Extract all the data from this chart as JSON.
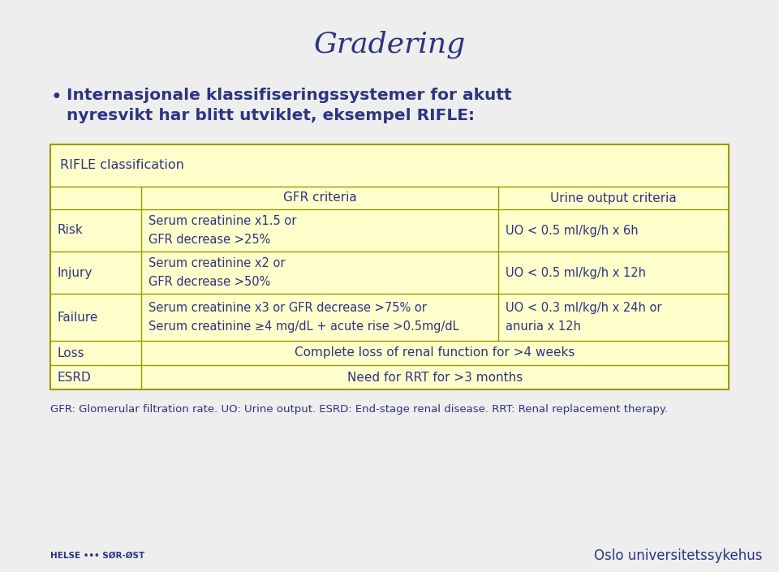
{
  "title": "Gradering",
  "bg_color": "#eeeeee",
  "text_color": "#2d3480",
  "table_bg": "#ffffcc",
  "table_border": "#999900",
  "table_header": "RIFLE classification",
  "col_header_gfr": "GFR criteria",
  "col_header_urine": "Urine output criteria",
  "rows": [
    {
      "label": "Risk",
      "gfr": "Serum creatinine x1.5 or\nGFR decrease >25%",
      "urine": "UO < 0.5 ml/kg/h x 6h"
    },
    {
      "label": "Injury",
      "gfr": "Serum creatinine x2 or\nGFR decrease >50%",
      "urine": "UO < 0.5 ml/kg/h x 12h"
    },
    {
      "label": "Failure",
      "gfr": "Serum creatinine x3 or GFR decrease >75% or\nSerum creatinine ≥4 mg/dL + acute rise >0.5mg/dL",
      "urine": "UO < 0.3 ml/kg/h x 24h or\nanuria x 12h"
    },
    {
      "label": "Loss",
      "gfr": "Complete loss of renal function for >4 weeks",
      "urine": null
    },
    {
      "label": "ESRD",
      "gfr": "Need for RRT for >3 months",
      "urine": null
    }
  ],
  "bullet_line1": "Internasjonale klassifiseringssystemer for akutt",
  "bullet_line2": "nyresvikt har blitt utviklet, eksempel RIFLE:",
  "footnote": "GFR: Glomerular filtration rate. UO: Urine output. ESRD: End-stage renal disease. RRT: Renal replacement therapy.",
  "footer_left": "HELSE ••• SØR-ØST",
  "footer_right": "Oslo universitetssykehus"
}
